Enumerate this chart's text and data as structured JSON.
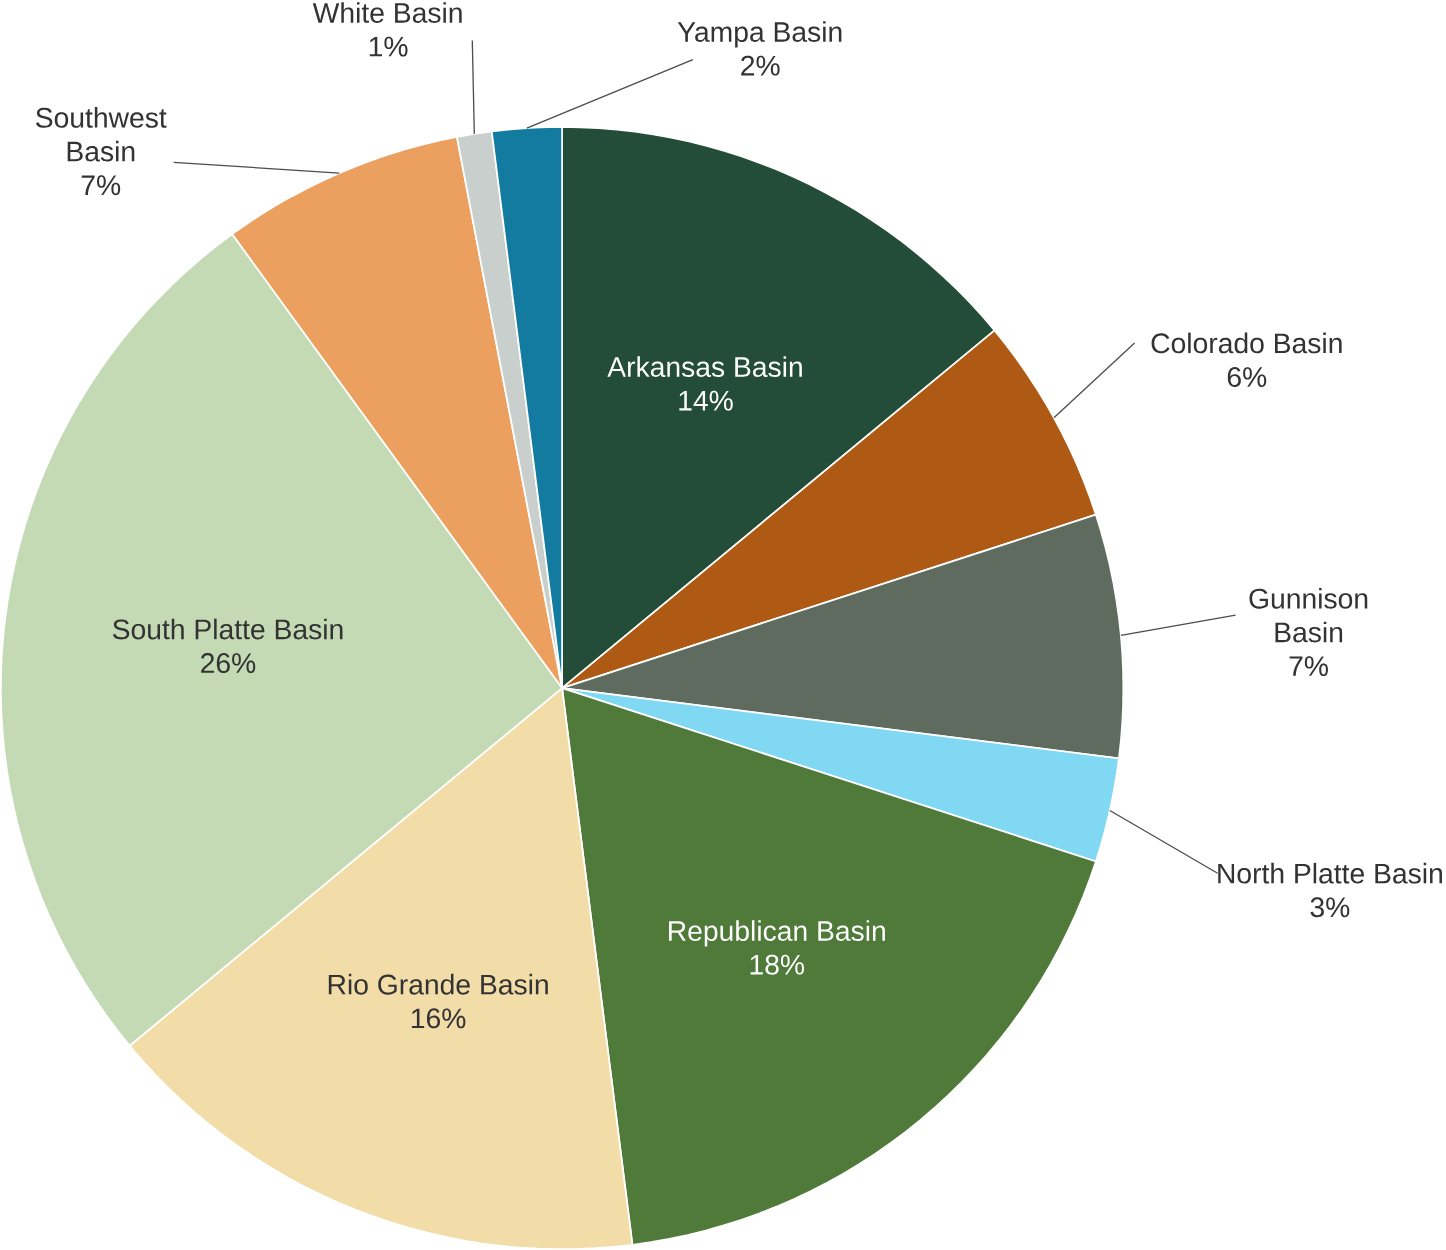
{
  "chart_data": {
    "type": "pie",
    "categories": [
      "Arkansas Basin",
      "Colorado Basin",
      "Gunnison Basin",
      "North Platte Basin",
      "Republican Basin",
      "Rio Grande Basin",
      "South Platte Basin",
      "Southwest Basin",
      "White Basin",
      "Yampa Basin"
    ],
    "values": [
      14,
      6,
      7,
      3,
      18,
      16,
      26,
      7,
      1,
      2
    ],
    "colors": [
      "#234d38",
      "#ae5a14",
      "#606b60",
      "#80d8f3",
      "#4f7a3a",
      "#f2dca8",
      "#c4dab4",
      "#eba060",
      "#c8cfcc",
      "#137ba0"
    ],
    "value_labels": [
      "14%",
      "6%",
      "7%",
      "3%",
      "18%",
      "16%",
      "26%",
      "7%",
      "1%",
      "2%"
    ]
  }
}
